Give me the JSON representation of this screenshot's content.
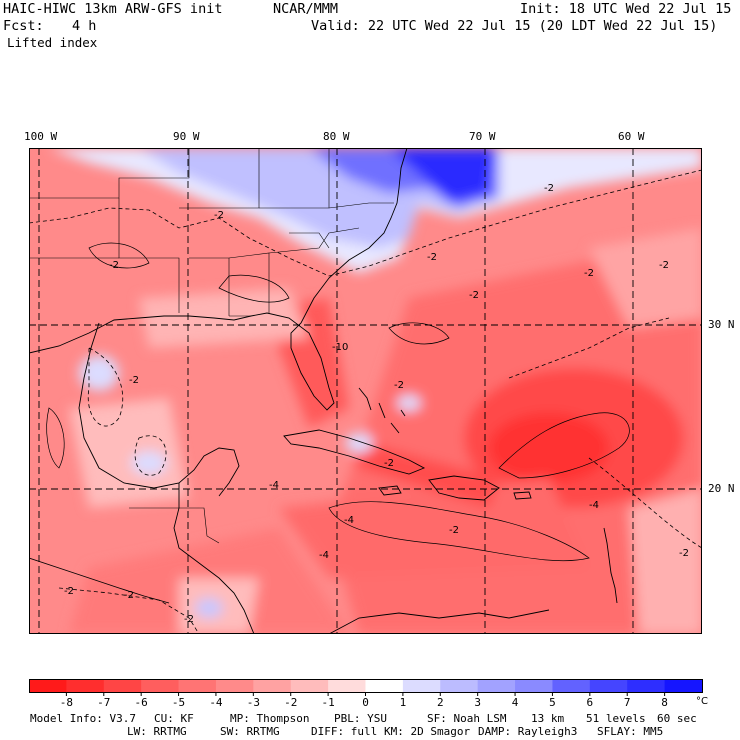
{
  "header": {
    "model": "HAIC-HIWC 13km ARW-GFS init",
    "org": "NCAR/MMM",
    "init": "Init: 18 UTC Wed 22 Jul 15",
    "fcst_label": "Fcst:",
    "fcst_value": "4 h",
    "valid": "Valid: 22 UTC Wed 22 Jul 15 (20 LDT Wed 22 Jul 15)",
    "field": "Lifted index"
  },
  "map": {
    "lon_labels": [
      "100 W",
      "90 W",
      "80 W",
      "70 W",
      "60 W"
    ],
    "lat_labels": [
      "30 N",
      "20 N"
    ],
    "contour_labels": [
      "-2",
      "-2",
      "-2",
      "-2",
      "-2",
      "-2",
      "-2",
      "-2",
      "-4",
      "-4",
      "-4",
      "-4",
      "-2",
      "-2",
      "-2",
      "-2",
      "-2",
      "-2",
      "-2",
      "-10"
    ]
  },
  "colorbar": {
    "ticks": [
      "-8",
      "-7",
      "-6",
      "-5",
      "-4",
      "-3",
      "-2",
      "-1",
      "0",
      "1",
      "2",
      "3",
      "4",
      "5",
      "6",
      "7",
      "8"
    ],
    "unit": "°C",
    "colors": [
      "#ff1a1a",
      "#ff2e2e",
      "#ff4545",
      "#ff5e5e",
      "#ff7474",
      "#ff8a8a",
      "#ffa2a2",
      "#ffbcbc",
      "#ffdcdc",
      "#ffffff",
      "#dcdcff",
      "#bcbcff",
      "#a2a2ff",
      "#8a8aff",
      "#6262ff",
      "#4545ff",
      "#2e2eff",
      "#1515ff"
    ]
  },
  "footer": {
    "line1": [
      {
        "label": "Model Info: V3.7"
      },
      {
        "label": "CU: KF"
      },
      {
        "label": "MP: Thompson"
      },
      {
        "label": "PBL: YSU"
      },
      {
        "label": "SF: Noah LSM"
      },
      {
        "label": "13 km"
      },
      {
        "label": "51 levels"
      },
      {
        "label": "60 sec"
      }
    ],
    "line2": [
      {
        "label": "LW: RRTMG"
      },
      {
        "label": "SW: RRTMG"
      },
      {
        "label": "DIFF: full"
      },
      {
        "label": "KM: 2D Smagor"
      },
      {
        "label": "DAMP: Rayleigh3"
      },
      {
        "label": "SFLAY: MM5"
      }
    ]
  }
}
